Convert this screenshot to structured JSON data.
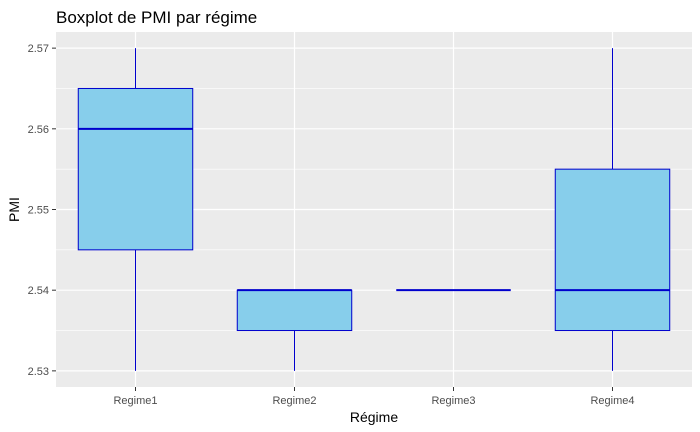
{
  "chart_data": {
    "type": "boxplot",
    "title": "Boxplot de PMI par régime",
    "xlabel": "Régime",
    "ylabel": "PMI",
    "categories": [
      "Regime1",
      "Regime2",
      "Regime3",
      "Regime4"
    ],
    "boxes": [
      {
        "category": "Regime1",
        "min": 2.53,
        "q1": 2.545,
        "median": 2.56,
        "q3": 2.565,
        "max": 2.57
      },
      {
        "category": "Regime2",
        "min": 2.53,
        "q1": 2.535,
        "median": 2.54,
        "q3": 2.54,
        "max": 2.54
      },
      {
        "category": "Regime3",
        "min": 2.54,
        "q1": 2.54,
        "median": 2.54,
        "q3": 2.54,
        "max": 2.54
      },
      {
        "category": "Regime4",
        "min": 2.53,
        "q1": 2.535,
        "median": 2.54,
        "q3": 2.555,
        "max": 2.57
      }
    ],
    "ylim": [
      2.528,
      2.572
    ],
    "yticks": [
      "2.53",
      "2.54",
      "2.55",
      "2.56",
      "2.57"
    ],
    "grid": true,
    "colors": {
      "box_fill": "#87CEEB",
      "box_stroke": "#0000CD",
      "panel_background": "#EBEBEB",
      "gridline": "#FFFFFF"
    }
  }
}
